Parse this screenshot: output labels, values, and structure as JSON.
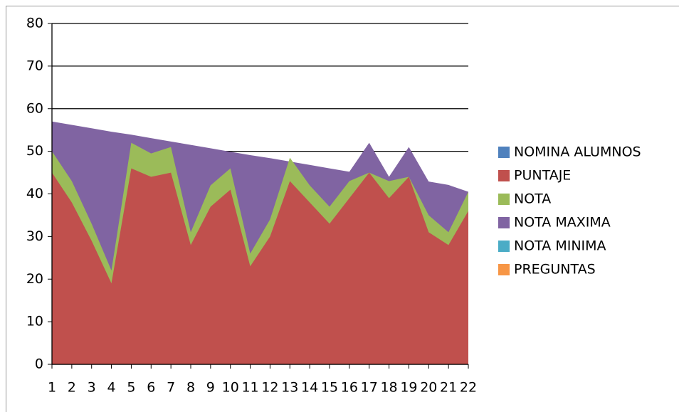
{
  "chart_data": {
    "type": "area",
    "categories": [
      "1",
      "2",
      "3",
      "4",
      "5",
      "6",
      "7",
      "8",
      "9",
      "10",
      "11",
      "12",
      "13",
      "14",
      "15",
      "16",
      "17",
      "18",
      "19",
      "20",
      "21",
      "22"
    ],
    "series": [
      {
        "name": "NOMINA ALUMNOS",
        "color": "#4f81bd"
      },
      {
        "name": "PUNTAJE",
        "color": "#c0504d",
        "values": [
          45,
          38,
          29,
          19,
          46,
          44,
          45,
          28,
          37,
          41,
          23,
          30,
          43,
          38,
          33,
          39,
          45,
          39,
          44,
          31,
          28,
          36
        ]
      },
      {
        "name": "NOTA",
        "color": "#9bbb59",
        "values": [
          50,
          43,
          33,
          22,
          52,
          49.5,
          51,
          31,
          42,
          46,
          26,
          34,
          48.5,
          42,
          37,
          43,
          45,
          43,
          44,
          35,
          31,
          40.5
        ]
      },
      {
        "name": "NOTA MAXIMA",
        "color": "#8064a2",
        "values": [
          57,
          56.2,
          55.4,
          54.6,
          53.9,
          53.1,
          52.3,
          51.5,
          50.7,
          49.9,
          49.1,
          48.4,
          47.6,
          46.8,
          46,
          45.2,
          52,
          44,
          51,
          42.9,
          42.1,
          40.5
        ]
      },
      {
        "name": "NOTA MINIMA",
        "color": "#4bacc6"
      },
      {
        "name": "PREGUNTAS",
        "color": "#f79646"
      }
    ],
    "ylim": [
      0,
      80
    ],
    "yticks": [
      0,
      10,
      20,
      30,
      40,
      50,
      60,
      70,
      80
    ],
    "grid": true,
    "legend": "right"
  }
}
